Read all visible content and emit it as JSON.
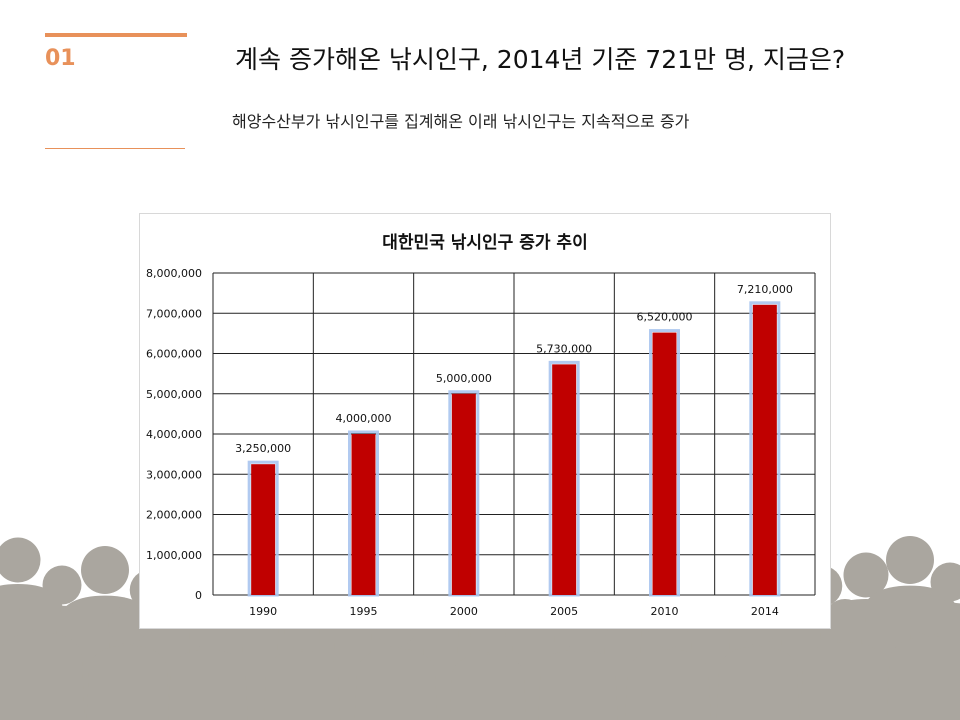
{
  "slide": {
    "number": "01",
    "title": "계속 증가해온 낚시인구, 2014년 기준 721만 명, 지금은?",
    "subtitle": "해양수산부가 낚시인구를 집계해온 이래 낚시인구는 지속적으로 증가"
  },
  "colors": {
    "accent": "#e8915a",
    "bar": "#c00000",
    "bar_glow": "#a9c4ee",
    "crowd": "#aaa69f"
  },
  "chart_data": {
    "type": "bar",
    "title": "대한민국 낚시인구 증가 추이",
    "categories": [
      "1990",
      "1995",
      "2000",
      "2005",
      "2010",
      "2014"
    ],
    "values": [
      3250000,
      4000000,
      5000000,
      5730000,
      6520000,
      7210000
    ],
    "data_labels": [
      "3,250,000",
      "4,000,000",
      "5,000,000",
      "5,730,000",
      "6,520,000",
      "7,210,000"
    ],
    "y_ticks": [
      "0",
      "1,000,000",
      "2,000,000",
      "3,000,000",
      "4,000,000",
      "5,000,000",
      "6,000,000",
      "7,000,000",
      "8,000,000"
    ],
    "ylim": [
      0,
      8000000
    ],
    "xlabel": "",
    "ylabel": "",
    "grid": true,
    "legend": "none"
  }
}
